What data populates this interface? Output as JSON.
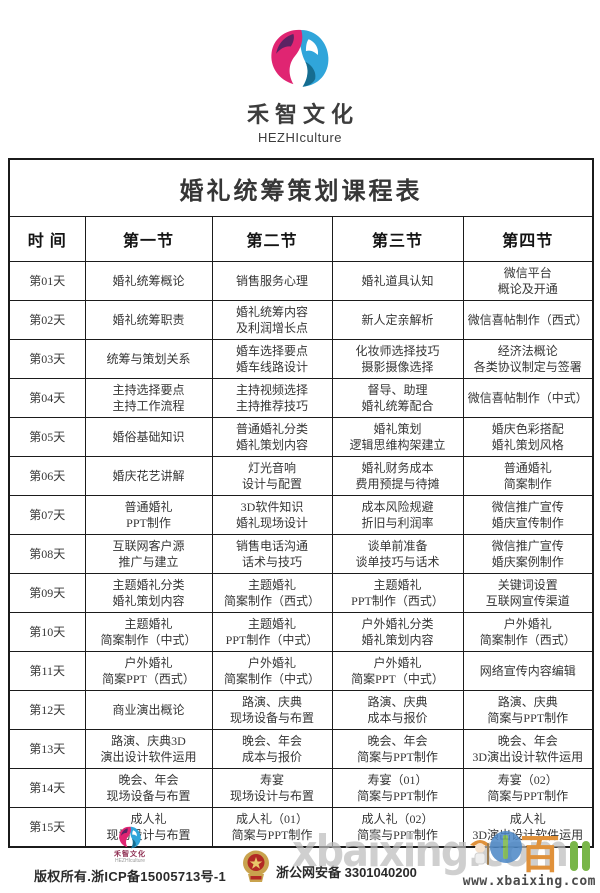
{
  "brand": {
    "name": "禾智文化",
    "subtitle": "HEZHIculture"
  },
  "schedule": {
    "title": "婚礼统筹策划课程表",
    "columns": [
      "时  间",
      "第一节",
      "第二节",
      "第三节",
      "第四节"
    ],
    "rows": [
      {
        "day": "第01天",
        "cells": [
          [
            "婚礼统筹概论"
          ],
          [
            "销售服务心理"
          ],
          [
            "婚礼道具认知"
          ],
          [
            "微信平台",
            "概论及开通"
          ]
        ]
      },
      {
        "day": "第02天",
        "cells": [
          [
            "婚礼统筹职责"
          ],
          [
            "婚礼统筹内容",
            "及利润增长点"
          ],
          [
            "新人定亲解析"
          ],
          [
            "微信喜帖制作（西式）"
          ]
        ]
      },
      {
        "day": "第03天",
        "cells": [
          [
            "统筹与策划关系"
          ],
          [
            "婚车选择要点",
            "婚车线路设计"
          ],
          [
            "化妆师选择技巧",
            "摄影摄像选择"
          ],
          [
            "经济法概论",
            "各类协议制定与签署"
          ]
        ]
      },
      {
        "day": "第04天",
        "cells": [
          [
            "主持选择要点",
            "主持工作流程"
          ],
          [
            "主持视频选择",
            "主持推荐技巧"
          ],
          [
            "督导、助理",
            "婚礼统筹配合"
          ],
          [
            "微信喜帖制作（中式）"
          ]
        ]
      },
      {
        "day": "第05天",
        "cells": [
          [
            "婚俗基础知识"
          ],
          [
            "普通婚礼分类",
            "婚礼策划内容"
          ],
          [
            "婚礼策划",
            "逻辑思维构架建立"
          ],
          [
            "婚庆色彩搭配",
            "婚礼策划风格"
          ]
        ]
      },
      {
        "day": "第06天",
        "cells": [
          [
            "婚庆花艺讲解"
          ],
          [
            "灯光音响",
            "设计与配置"
          ],
          [
            "婚礼财务成本",
            "费用预提与待摊"
          ],
          [
            "普通婚礼",
            "简案制作"
          ]
        ]
      },
      {
        "day": "第07天",
        "cells": [
          [
            "普通婚礼",
            "PPT制作"
          ],
          [
            "3D软件知识",
            "婚礼现场设计"
          ],
          [
            "成本风险规避",
            "折旧与利润率"
          ],
          [
            "微信推广宣传",
            "婚庆宣传制作"
          ]
        ]
      },
      {
        "day": "第08天",
        "cells": [
          [
            "互联网客户源",
            "推广与建立"
          ],
          [
            "销售电话沟通",
            "话术与技巧"
          ],
          [
            "谈单前准备",
            "谈单技巧与话术"
          ],
          [
            "微信推广宣传",
            "婚庆案例制作"
          ]
        ]
      },
      {
        "day": "第09天",
        "cells": [
          [
            "主题婚礼分类",
            "婚礼策划内容"
          ],
          [
            "主题婚礼",
            "简案制作（西式）"
          ],
          [
            "主题婚礼",
            "PPT制作（西式）"
          ],
          [
            "关键词设置",
            "互联网宣传渠道"
          ]
        ]
      },
      {
        "day": "第10天",
        "cells": [
          [
            "主题婚礼",
            "简案制作（中式）"
          ],
          [
            "主题婚礼",
            "PPT制作（中式）"
          ],
          [
            "户外婚礼分类",
            "婚礼策划内容"
          ],
          [
            "户外婚礼",
            "简案制作（西式）"
          ]
        ]
      },
      {
        "day": "第11天",
        "cells": [
          [
            "户外婚礼",
            "简案PPT（西式）"
          ],
          [
            "户外婚礼",
            "简案制作（中式）"
          ],
          [
            "户外婚礼",
            "简案PPT（中式）"
          ],
          [
            "网络宣传内容编辑"
          ]
        ]
      },
      {
        "day": "第12天",
        "cells": [
          [
            "商业演出概论"
          ],
          [
            "路演、庆典",
            "现场设备与布置"
          ],
          [
            "路演、庆典",
            "成本与报价"
          ],
          [
            "路演、庆典",
            "简案与PPT制作"
          ]
        ]
      },
      {
        "day": "第13天",
        "cells": [
          [
            "路演、庆典3D",
            "演出设计软件运用"
          ],
          [
            "晚会、年会",
            "成本与报价"
          ],
          [
            "晚会、年会",
            "简案与PPT制作"
          ],
          [
            "晚会、年会",
            "3D演出设计软件运用"
          ]
        ]
      },
      {
        "day": "第14天",
        "cells": [
          [
            "晚会、年会",
            "现场设备与布置"
          ],
          [
            "寿宴",
            "现场设计与布置"
          ],
          [
            "寿宴（01）",
            "简案与PPT制作"
          ],
          [
            "寿宴（02）",
            "简案与PPT制作"
          ]
        ]
      },
      {
        "day": "第15天",
        "cells": [
          [
            "成人礼",
            "现场设计与布置"
          ],
          [
            "成人礼（01）",
            "简案与PPT制作"
          ],
          [
            "成人礼（02）",
            "简案与PPT制作"
          ],
          [
            "成人礼",
            "3D演出设计软件运用"
          ]
        ]
      }
    ]
  },
  "footer": {
    "brand_name": "禾智文化",
    "brand_subtitle": "HEZHIculture",
    "copyright": "版权所有.浙ICP备15005713号-1",
    "police_record": "浙公网安备 3301040200",
    "watermark_text": "xbaixing.com",
    "watermark_bai": "百",
    "watermark_url": "www.xbaixing.com"
  },
  "colors": {
    "logo-pink": "#e02572",
    "logo-purple": "#5c2363",
    "logo-blue": "#30a5da",
    "logo-teal": "#166d90",
    "badge-gold": "#c9a34e",
    "badge-red": "#b22a24",
    "wm-gray": "#bdbdbd",
    "wm-orange": "#e0913a",
    "wm-green": "#79b648",
    "wm-blue": "#4b87c6"
  }
}
